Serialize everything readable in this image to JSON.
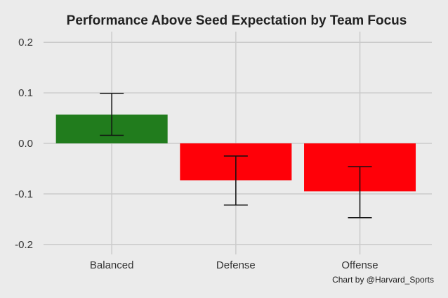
{
  "chart_data": {
    "type": "bar",
    "title": "Performance Above Seed Expectation by Team Focus",
    "xlabel": "",
    "ylabel": "",
    "categories": [
      "Balanced",
      "Defense",
      "Offense"
    ],
    "values": [
      0.057,
      -0.073,
      -0.095
    ],
    "error_low": [
      0.016,
      -0.122,
      -0.147
    ],
    "error_high": [
      0.099,
      -0.025,
      -0.046
    ],
    "bar_colors": [
      "#217c1d",
      "#ff0008",
      "#ff0008"
    ],
    "ylim": [
      -0.22,
      0.22
    ],
    "yticks": [
      0.2,
      0.1,
      0.0,
      -0.1,
      -0.2
    ],
    "ytick_labels": [
      "0.2",
      "0.1",
      "0.0",
      "-0.1",
      "-0.2"
    ],
    "grid": true,
    "background": "#ebebeb",
    "annotation": "Chart by @Harvard_Sports"
  }
}
